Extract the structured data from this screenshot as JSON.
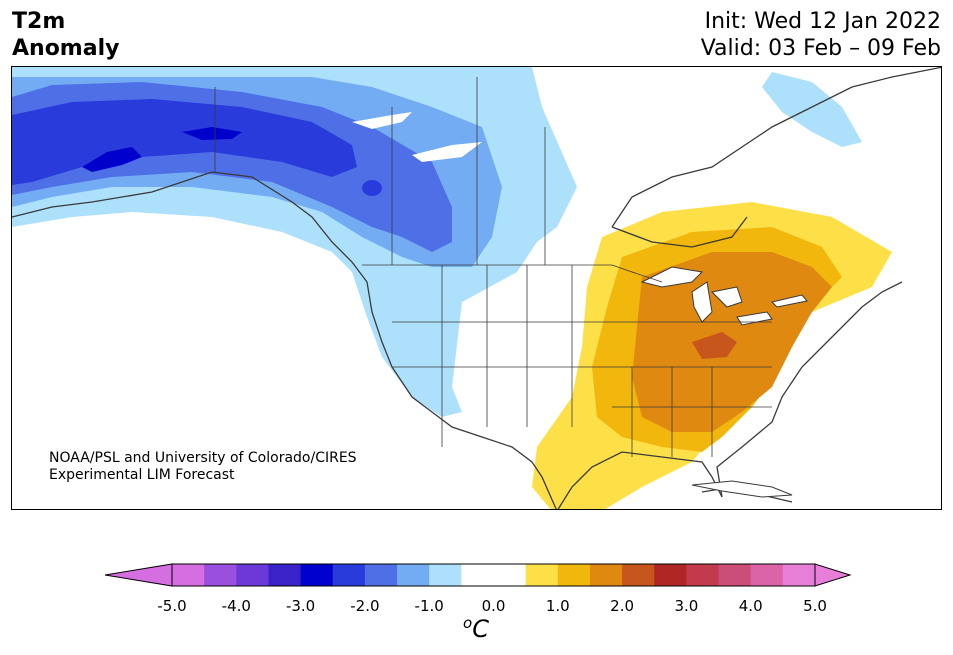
{
  "header": {
    "title_line1": "T2m",
    "title_line2": "Anomaly",
    "init": "Init: Wed 12 Jan 2022",
    "valid": "Valid: 03 Feb – 09 Feb"
  },
  "credit": {
    "line1": "NOAA/PSL and University of Colorado/CIRES",
    "line2": "Experimental LIM Forecast"
  },
  "colorbar": {
    "units_symbol": "o",
    "units_letter": "C",
    "tick_labels": [
      "-5.0",
      "-4.0",
      "-3.0",
      "-2.0",
      "-1.0",
      "0.0",
      "1.0",
      "2.0",
      "3.0",
      "4.0",
      "5.0"
    ],
    "colors": [
      "#d56ee0",
      "#9b4fde",
      "#6a39d8",
      "#3a22c9",
      "#0000cc",
      "#2a3bdb",
      "#4f6fe6",
      "#73acf2",
      "#ade0fb",
      "#ffffff",
      "#ffffff",
      "#fde048",
      "#f1b70d",
      "#e08910",
      "#c7561c",
      "#b02626",
      "#c33a4d",
      "#cb4e78",
      "#db63a8",
      "#e77fd9"
    ],
    "under_color": "#d56ee0",
    "over_color": "#e77fd9"
  },
  "map": {
    "region": "North America",
    "field": "2m temperature anomaly",
    "palette": {
      "blue_1": "#ade0fb",
      "blue_2": "#73acf2",
      "blue_3": "#4f6fe6",
      "blue_4": "#2a3bdb",
      "blue_5": "#0000cc",
      "warm_1": "#fde048",
      "warm_2": "#f1b70d",
      "warm_3": "#e08910",
      "warm_4": "#c7561c",
      "coast": "#3a3a3a"
    }
  }
}
